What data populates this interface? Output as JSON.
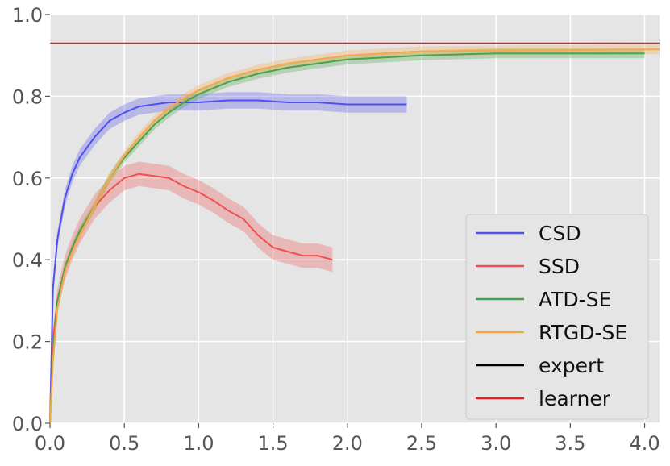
{
  "chart_data": {
    "type": "line",
    "title": "",
    "xlabel": "",
    "ylabel": "",
    "xlim": [
      0,
      4.1
    ],
    "ylim": [
      0,
      1.0
    ],
    "grid": true,
    "legend_position": "bottom-right",
    "x_ticks": [
      "0.0",
      "0.5",
      "1.0",
      "1.5",
      "2.0",
      "2.5",
      "3.0",
      "3.5",
      "4.0"
    ],
    "y_ticks": [
      "0.0",
      "0.2",
      "0.4",
      "0.6",
      "0.8",
      "1.0"
    ],
    "series": [
      {
        "name": "CSD",
        "color": "#4f4ff0",
        "band": 0.02,
        "x": [
          0,
          0.02,
          0.05,
          0.1,
          0.15,
          0.2,
          0.3,
          0.4,
          0.5,
          0.6,
          0.7,
          0.8,
          0.9,
          1.0,
          1.2,
          1.4,
          1.6,
          1.8,
          2.0,
          2.2,
          2.4
        ],
        "y": [
          0.0,
          0.33,
          0.45,
          0.55,
          0.61,
          0.65,
          0.7,
          0.74,
          0.76,
          0.775,
          0.78,
          0.785,
          0.785,
          0.785,
          0.79,
          0.79,
          0.785,
          0.785,
          0.78,
          0.78,
          0.78
        ]
      },
      {
        "name": "SSD",
        "color": "#f05050",
        "band": 0.03,
        "x": [
          0,
          0.02,
          0.05,
          0.1,
          0.15,
          0.2,
          0.3,
          0.4,
          0.5,
          0.6,
          0.7,
          0.8,
          0.9,
          1.0,
          1.1,
          1.2,
          1.3,
          1.4,
          1.5,
          1.6,
          1.7,
          1.8,
          1.9
        ],
        "y": [
          0.0,
          0.2,
          0.3,
          0.38,
          0.43,
          0.47,
          0.53,
          0.57,
          0.6,
          0.61,
          0.605,
          0.6,
          0.58,
          0.565,
          0.545,
          0.52,
          0.5,
          0.46,
          0.43,
          0.42,
          0.41,
          0.41,
          0.4
        ]
      },
      {
        "name": "ATD-SE",
        "color": "#4aa34a",
        "band": 0.012,
        "x": [
          0,
          0.02,
          0.05,
          0.1,
          0.15,
          0.2,
          0.3,
          0.4,
          0.5,
          0.6,
          0.7,
          0.8,
          0.9,
          1.0,
          1.2,
          1.4,
          1.6,
          1.8,
          2.0,
          2.5,
          3.0,
          3.5,
          4.0
        ],
        "y": [
          0.0,
          0.17,
          0.3,
          0.38,
          0.43,
          0.47,
          0.53,
          0.6,
          0.65,
          0.69,
          0.73,
          0.76,
          0.785,
          0.805,
          0.835,
          0.855,
          0.87,
          0.88,
          0.89,
          0.9,
          0.905,
          0.905,
          0.905
        ]
      },
      {
        "name": "RTGD-SE",
        "color": "#f5a84a",
        "band": 0.012,
        "x": [
          0,
          0.02,
          0.05,
          0.1,
          0.15,
          0.2,
          0.3,
          0.4,
          0.5,
          0.6,
          0.7,
          0.8,
          0.9,
          1.0,
          1.2,
          1.4,
          1.6,
          1.8,
          2.0,
          2.5,
          3.0,
          3.5,
          4.1
        ],
        "y": [
          0.0,
          0.15,
          0.28,
          0.37,
          0.42,
          0.46,
          0.53,
          0.6,
          0.655,
          0.7,
          0.74,
          0.77,
          0.795,
          0.815,
          0.845,
          0.865,
          0.88,
          0.89,
          0.9,
          0.91,
          0.912,
          0.913,
          0.915
        ]
      },
      {
        "name": "expert",
        "color": "#000000",
        "x": [],
        "y": []
      },
      {
        "name": "learner",
        "color": "#e02020",
        "x": [
          0,
          4.1
        ],
        "y": [
          0.93,
          0.93
        ]
      }
    ]
  }
}
